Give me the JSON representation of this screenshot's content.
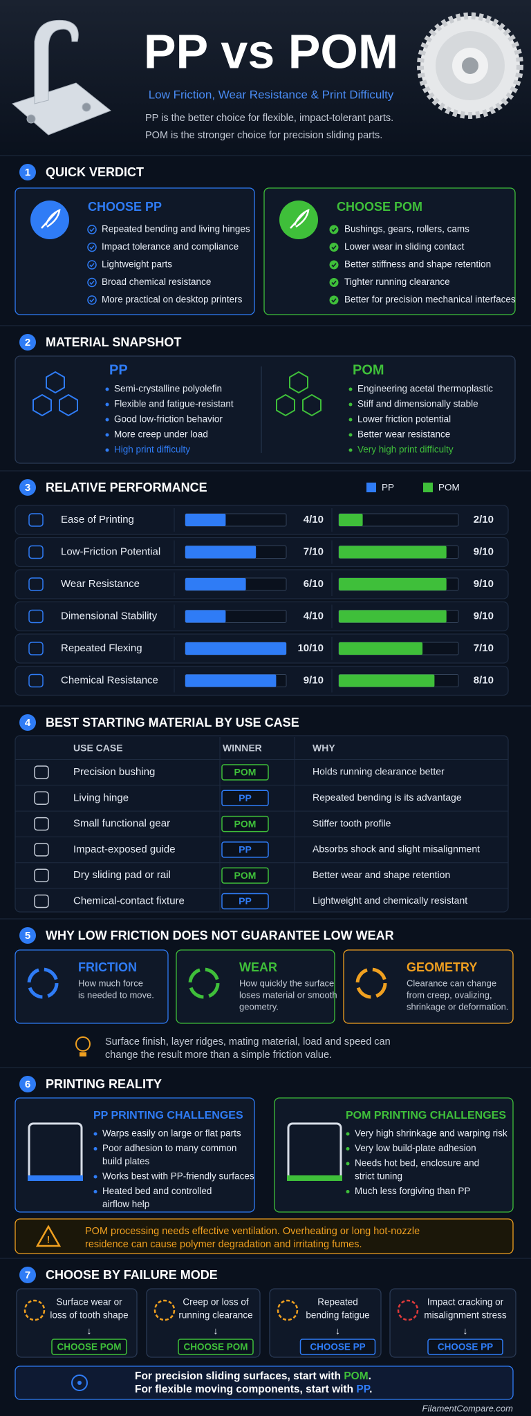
{
  "header": {
    "title": "PP vs POM",
    "subtitle": "Low Friction, Wear Resistance & Print Difficulty",
    "description": [
      "PP is the better choice for flexible, impact-tolerant parts.",
      "POM is the stronger choice for precision sliding parts."
    ]
  },
  "verdict": {
    "number": "1",
    "title": "QUICK VERDICT",
    "pp": {
      "heading": "CHOOSE PP",
      "items": [
        "Repeated bending and living hinges",
        "Impact tolerance and compliance",
        "Lightweight parts",
        "Broad chemical resistance",
        "More practical on desktop printers"
      ]
    },
    "pom": {
      "heading": "CHOOSE POM",
      "items": [
        "Bushings, gears, rollers, cams",
        "Lower wear in sliding contact",
        "Better stiffness and shape retention",
        "Tighter running clearance",
        "Better for precision mechanical interfaces"
      ]
    }
  },
  "snapshot": {
    "number": "2",
    "title": "MATERIAL SNAPSHOT",
    "pp": {
      "heading": "PP",
      "items": [
        "Semi-crystalline polyolefin",
        "Flexible and fatigue-resistant",
        "Good low-friction behavior",
        "More creep under load",
        "High print difficulty"
      ]
    },
    "pom": {
      "heading": "POM",
      "items": [
        "Engineering acetal thermoplastic",
        "Stiff and dimensionally stable",
        "Lower friction potential",
        "Better wear resistance",
        "Very high print difficulty"
      ]
    }
  },
  "performance": {
    "number": "3",
    "title": "RELATIVE PERFORMANCE",
    "legend": [
      "PP",
      "POM"
    ],
    "colors": [
      "#2f7cf6",
      "#3fbf3a"
    ],
    "xlim": [
      0,
      10
    ],
    "rows": [
      {
        "label": "Ease of Printing",
        "pp": {
          "value": 4,
          "label": "4/10"
        },
        "pom": {
          "value": 2,
          "label": "2/10"
        }
      },
      {
        "label": "Low-Friction Potential",
        "pp": {
          "value": 7,
          "label": "7/10"
        },
        "pom": {
          "value": 9,
          "label": "9/10"
        }
      },
      {
        "label": "Wear Resistance",
        "pp": {
          "value": 6,
          "label": "6/10"
        },
        "pom": {
          "value": 9,
          "label": "9/10"
        }
      },
      {
        "label": "Dimensional Stability",
        "pp": {
          "value": 4,
          "label": "4/10"
        },
        "pom": {
          "value": 9,
          "label": "9/10"
        }
      },
      {
        "label": "Repeated Flexing",
        "pp": {
          "value": 10,
          "label": "10/10"
        },
        "pom": {
          "value": 7,
          "label": "7/10"
        }
      },
      {
        "label": "Chemical Resistance",
        "pp": {
          "value": 9,
          "label": "9/10"
        },
        "pom": {
          "value": 8,
          "label": "8/10"
        }
      }
    ]
  },
  "use_cases": {
    "number": "4",
    "title": "BEST STARTING MATERIAL BY USE CASE",
    "columns": [
      "USE CASE",
      "WINNER",
      "WHY"
    ],
    "rows": [
      [
        "Precision bushing",
        "POM",
        "Holds running clearance better"
      ],
      [
        "Living hinge",
        "PP",
        "Repeated bending is its advantage"
      ],
      [
        "Small functional gear",
        "POM",
        "Stiffer tooth profile"
      ],
      [
        "Impact-exposed guide",
        "PP",
        "Absorbs shock and slight misalignment"
      ],
      [
        "Dry sliding pad or rail",
        "POM",
        "Better wear and shape retention"
      ],
      [
        "Chemical-contact fixture",
        "PP",
        "Lightweight and chemically resistant"
      ]
    ]
  },
  "friction": {
    "number": "5",
    "title": "WHY LOW FRICTION DOES NOT GUARANTEE LOW WEAR",
    "cards": [
      {
        "heading": "FRICTION",
        "lines": [
          "How much force",
          "is needed to move."
        ]
      },
      {
        "heading": "WEAR",
        "lines": [
          "How quickly the surface",
          "loses material or smooth",
          "geometry."
        ]
      },
      {
        "heading": "GEOMETRY",
        "lines": [
          "Clearance can change",
          "from creep, ovalizing,",
          "shrinkage or deformation."
        ]
      }
    ],
    "note": [
      "Surface finish, layer ridges, mating material, load and speed can",
      "change the result more than a simple friction value."
    ]
  },
  "printing": {
    "number": "6",
    "title": "PRINTING REALITY",
    "pp": {
      "heading": "PP PRINTING CHALLENGES",
      "items": [
        [
          "Warps easily on large or flat parts"
        ],
        [
          "Poor adhesion to many common",
          "build plates"
        ],
        [
          "Works best with PP-friendly surfaces"
        ],
        [
          "Heated bed and controlled",
          "airflow help"
        ]
      ]
    },
    "pom": {
      "heading": "POM PRINTING CHALLENGES",
      "items": [
        [
          "Very high shrinkage and warping risk"
        ],
        [
          "Very low build-plate adhesion"
        ],
        [
          "Needs hot bed, enclosure and",
          "strict tuning"
        ],
        [
          "Much less forgiving than PP"
        ]
      ]
    },
    "warning": [
      "POM processing needs effective ventilation. Overheating or long hot-nozzle",
      "residence can cause polymer degradation and irritating fumes."
    ]
  },
  "failure": {
    "number": "7",
    "title": "CHOOSE BY FAILURE MODE",
    "cards": [
      {
        "lines": [
          "Surface wear or",
          "loss of tooth shape"
        ],
        "choice": "CHOOSE POM"
      },
      {
        "lines": [
          "Creep or loss of",
          "running clearance"
        ],
        "choice": "CHOOSE POM"
      },
      {
        "lines": [
          "Repeated",
          "bending fatigue"
        ],
        "choice": "CHOOSE PP"
      },
      {
        "lines": [
          "Impact cracking or",
          "misalignment stress"
        ],
        "choice": "CHOOSE PP"
      }
    ],
    "summary": [
      [
        "For precision sliding surfaces, start with ",
        "POM",
        "."
      ],
      [
        "For flexible moving components, start with ",
        "PP",
        "."
      ]
    ]
  },
  "footer": "FilamentCompare.com"
}
